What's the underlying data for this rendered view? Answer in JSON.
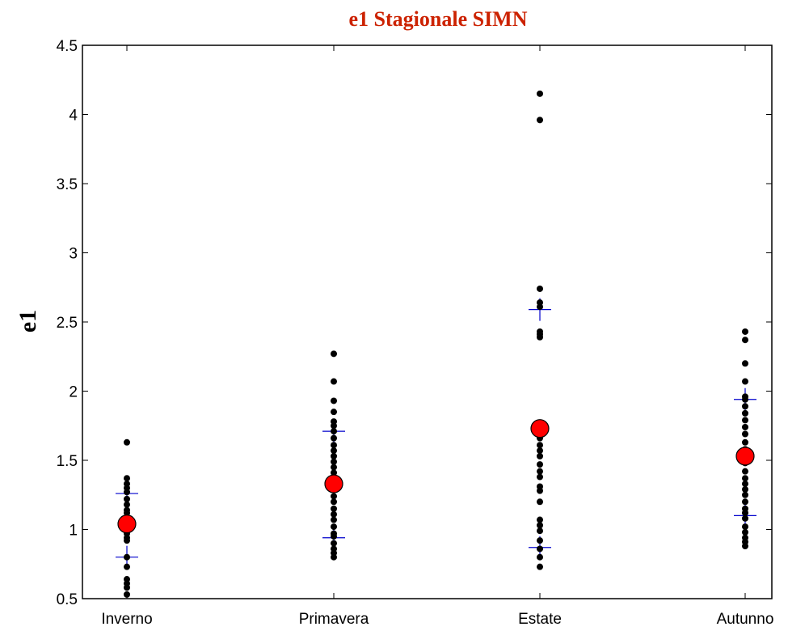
{
  "chart_data": {
    "type": "scatter",
    "title": "e1 Stagionale SIMN",
    "xlabel": "",
    "ylabel": "e1",
    "categories": [
      "Inverno",
      "Primavera",
      "Estate",
      "Autunno"
    ],
    "ylim": [
      0.5,
      4.5
    ],
    "yticks": [
      "0.5",
      "1",
      "1.5",
      "2",
      "2.5",
      "3",
      "3.5",
      "4",
      "4.5"
    ],
    "grid": false,
    "legend": "none",
    "points": [
      {
        "category": "Inverno",
        "values": [
          1.63,
          1.37,
          1.33,
          1.3,
          1.27,
          1.22,
          1.18,
          1.14,
          1.12,
          1.09,
          1.05,
          1.03,
          1.0,
          0.97,
          0.94,
          0.92,
          0.8,
          0.73,
          0.64,
          0.61,
          0.58,
          0.53
        ]
      },
      {
        "category": "Primavera",
        "values": [
          2.27,
          2.07,
          1.93,
          1.85,
          1.78,
          1.75,
          1.71,
          1.66,
          1.61,
          1.57,
          1.53,
          1.49,
          1.45,
          1.41,
          1.36,
          1.3,
          1.24,
          1.2,
          1.15,
          1.11,
          1.07,
          1.02,
          0.97,
          0.95,
          0.9,
          0.86,
          0.83,
          0.8
        ]
      },
      {
        "category": "Estate",
        "values": [
          4.15,
          3.96,
          2.74,
          2.64,
          2.61,
          2.43,
          2.41,
          2.39,
          1.71,
          1.66,
          1.61,
          1.57,
          1.53,
          1.47,
          1.42,
          1.38,
          1.31,
          1.28,
          1.2,
          1.07,
          1.03,
          0.99,
          0.92,
          0.86,
          0.8,
          0.73
        ]
      },
      {
        "category": "Autunno",
        "values": [
          2.43,
          2.37,
          2.2,
          2.07,
          1.96,
          1.94,
          1.89,
          1.84,
          1.79,
          1.74,
          1.69,
          1.63,
          1.58,
          1.53,
          1.48,
          1.42,
          1.37,
          1.33,
          1.29,
          1.25,
          1.2,
          1.15,
          1.12,
          1.08,
          1.02,
          0.98,
          0.94,
          0.91,
          0.88
        ]
      }
    ],
    "mean": [
      1.04,
      1.33,
      1.73,
      1.53
    ],
    "percentile_markers": {
      "upper": [
        1.26,
        1.71,
        2.59,
        1.94
      ],
      "lower": [
        0.8,
        0.94,
        0.87,
        1.1
      ]
    },
    "colors": {
      "title": "#cc2200",
      "points": "#000000",
      "mean": "#ff0000",
      "percentile": "#0000cc"
    }
  }
}
